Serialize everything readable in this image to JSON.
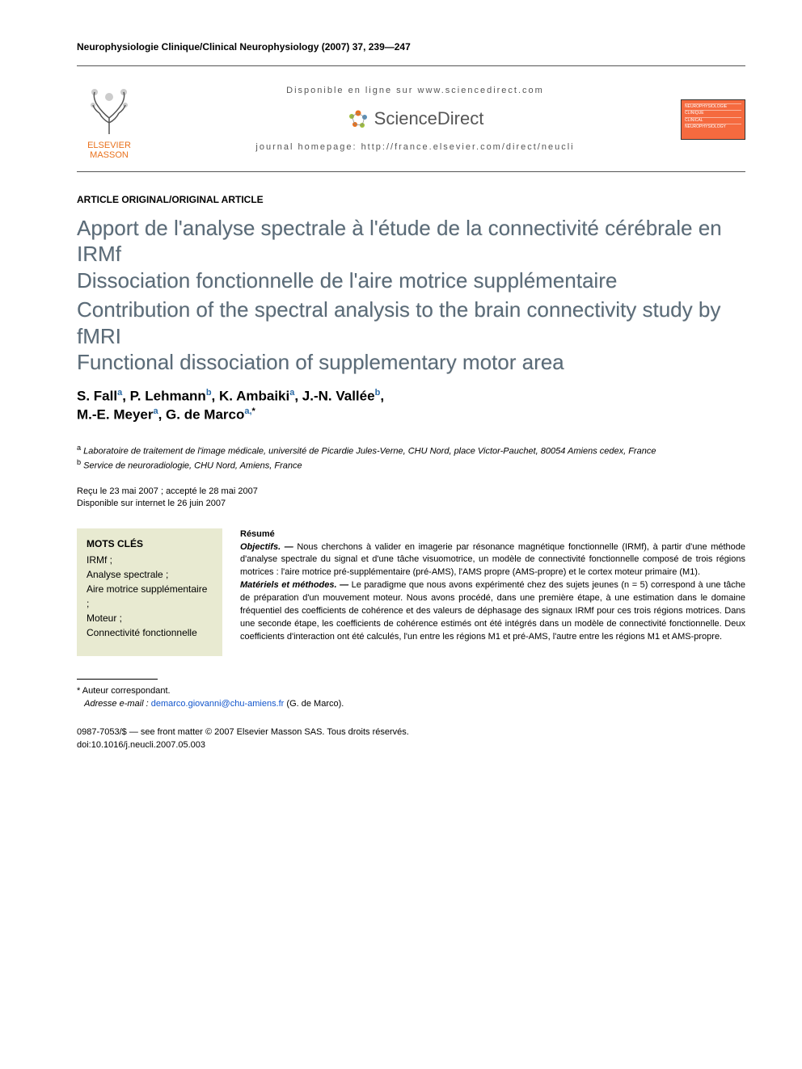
{
  "journal_line": "Neurophysiologie Clinique/Clinical Neurophysiology (2007) 37, 239—247",
  "header": {
    "publisher_top": "ELSEVIER",
    "publisher_bottom": "MASSON",
    "available_line": "Disponible en ligne sur www.sciencedirect.com",
    "sd_brand": "ScienceDirect",
    "homepage_line": "journal homepage: http://france.elsevier.com/direct/neucli",
    "cover_lines": [
      "NEUROPHYSIOLOGIE",
      "CLINIQUE",
      "CLINICAL",
      "NEUROPHYSIOLOGY"
    ]
  },
  "article_type": "ARTICLE ORIGINAL/ORIGINAL ARTICLE",
  "title_fr_1": "Apport de l'analyse spectrale à l'étude de la connectivité cérébrale en IRMf",
  "title_fr_2": "Dissociation fonctionnelle de l'aire motrice supplémentaire",
  "title_en_1": "Contribution of the spectral analysis to the brain connectivity study by fMRI",
  "title_en_2": "Functional dissociation of supplementary motor area",
  "authors": [
    {
      "name": "S. Fall",
      "aff": "a"
    },
    {
      "name": "P. Lehmann",
      "aff": "b"
    },
    {
      "name": "K. Ambaiki",
      "aff": "a"
    },
    {
      "name": "J.-N. Vallée",
      "aff": "b"
    },
    {
      "name": "M.-E. Meyer",
      "aff": "a"
    },
    {
      "name": "G. de Marco",
      "aff": "a,",
      "corr": true
    }
  ],
  "affiliations": {
    "a": "Laboratoire de traitement de l'image médicale, université de Picardie Jules-Verne, CHU Nord, place Victor-Pauchet, 80054 Amiens cedex, France",
    "b": "Service de neuroradiologie, CHU Nord, Amiens, France"
  },
  "dates": {
    "received": "Reçu le 23 mai 2007 ; accepté le 28 mai 2007",
    "online": "Disponible sur internet le 26 juin 2007"
  },
  "keywords": {
    "head": "MOTS CLÉS",
    "items": [
      "IRMf ;",
      "Analyse spectrale ;",
      "Aire motrice supplémentaire ;",
      "Moteur ;",
      "Connectivité fonctionnelle"
    ]
  },
  "abstract": {
    "head": "Résumé",
    "objectifs_label": "Objectifs. —",
    "objectifs_text": " Nous cherchons à valider en imagerie par résonance magnétique fonctionnelle (IRMf), à partir d'une méthode d'analyse spectrale du signal et d'une tâche visuomotrice, un modèle de connectivité fonctionnelle composé de trois régions motrices : l'aire motrice pré-supplémentaire (pré-AMS), l'AMS propre (AMS-propre) et le cortex moteur primaire (M1).",
    "methods_label": "Matériels et méthodes. —",
    "methods_text": " Le paradigme que nous avons expérimenté chez des sujets jeunes (n = 5) correspond à une tâche de préparation d'un mouvement moteur. Nous avons procédé, dans une première étape, à une estimation dans le domaine fréquentiel des coefficients de cohérence et des valeurs de déphasage des signaux IRMf pour ces trois régions motrices. Dans une seconde étape, les coefficients de cohérence estimés ont été intégrés dans un modèle de connectivité fonctionnelle. Deux coefficients d'interaction ont été calculés, l'un entre les régions M1 et pré-AMS, l'autre entre les régions M1 et AMS-propre."
  },
  "footnotes": {
    "corr": "Auteur correspondant.",
    "email_label": "Adresse e-mail :",
    "email": "demarco.giovanni@chu-amiens.fr",
    "email_who": " (G. de Marco)."
  },
  "footer": {
    "issn_line": "0987-7053/$ — see front matter © 2007 Elsevier Masson SAS. Tous droits réservés.",
    "doi_line": "doi:10.1016/j.neucli.2007.05.003"
  },
  "colors": {
    "title_color": "#5a6b78",
    "kw_bg": "#e8ead1",
    "publisher_color": "#e9711c",
    "cover_bg": "#f56a3f",
    "link_color": "#2b6aa5"
  }
}
